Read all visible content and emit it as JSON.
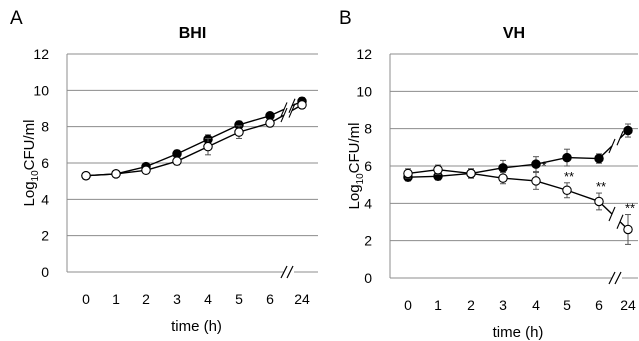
{
  "chart_data": [
    {
      "type": "line",
      "panel": "A",
      "title": "BHI",
      "xlabel": "time (h)",
      "ylabel": "Log10CFU/ml",
      "ylabel_parts": [
        "Log",
        "10",
        "CFU/ml"
      ],
      "categories": [
        "0",
        "1",
        "2",
        "3",
        "4",
        "5",
        "6",
        "24"
      ],
      "axis_break_before": "24",
      "ylim": [
        0,
        12
      ],
      "yticks": [
        0,
        2,
        4,
        6,
        8,
        10,
        12
      ],
      "grid": true,
      "legend": "none",
      "series": [
        {
          "marker": "filled-circle",
          "color": "#000000",
          "values": [
            5.3,
            5.4,
            5.8,
            6.5,
            7.3,
            8.1,
            8.6,
            9.4
          ],
          "errors": [
            0.1,
            0.1,
            0.2,
            0.2,
            0.25,
            0.2,
            0.15,
            0.2
          ]
        },
        {
          "marker": "open-circle",
          "color": "#000000",
          "values": [
            5.3,
            5.4,
            5.6,
            6.1,
            6.9,
            7.7,
            8.2,
            9.2
          ],
          "errors": [
            0.1,
            0.1,
            0.15,
            0.2,
            0.45,
            0.35,
            0.2,
            0.2
          ]
        }
      ],
      "annotations": []
    },
    {
      "type": "line",
      "panel": "B",
      "title": "VH",
      "xlabel": "time (h)",
      "ylabel": "Log10CFU/ml",
      "ylabel_parts": [
        "Log",
        "10",
        "CFU/ml"
      ],
      "categories": [
        "0",
        "1",
        "2",
        "3",
        "4",
        "5",
        "6",
        "24"
      ],
      "axis_break_before": "24",
      "ylim": [
        0,
        12
      ],
      "yticks": [
        0,
        2,
        4,
        6,
        8,
        10,
        12
      ],
      "grid": true,
      "legend": "none",
      "series": [
        {
          "marker": "filled-circle",
          "color": "#000000",
          "values": [
            5.4,
            5.45,
            5.6,
            5.9,
            6.1,
            6.45,
            6.4,
            7.9
          ],
          "errors": [
            0.2,
            0.2,
            0.25,
            0.4,
            0.4,
            0.45,
            0.25,
            0.35
          ]
        },
        {
          "marker": "open-circle",
          "color": "#000000",
          "values": [
            5.6,
            5.8,
            5.6,
            5.35,
            5.2,
            4.7,
            4.1,
            2.6
          ],
          "errors": [
            0.25,
            0.25,
            0.25,
            0.3,
            0.45,
            0.4,
            0.45,
            0.8
          ]
        }
      ],
      "annotations": [
        {
          "category": "4",
          "text": "*"
        },
        {
          "category": "5",
          "text": "**"
        },
        {
          "category": "6",
          "text": "**"
        },
        {
          "category": "24",
          "text": "**"
        }
      ]
    }
  ]
}
